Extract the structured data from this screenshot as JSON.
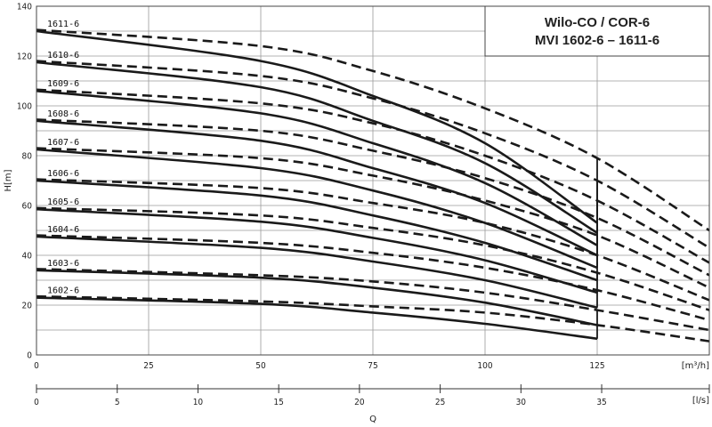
{
  "chart_data": {
    "type": "line",
    "title_line1": "Wilo-CO / COR-6",
    "title_line2": "MVI 1602-6 – 1611-6",
    "ylabel": "H[m]",
    "xlabel": "Q",
    "x_unit": "[m³/h]",
    "x2_unit": "[l/s]",
    "xlim": [
      0,
      150
    ],
    "ylim": [
      0,
      140
    ],
    "x_ticks": [
      0,
      25,
      50,
      75,
      100,
      125
    ],
    "y_ticks": [
      0,
      20,
      40,
      60,
      80,
      100,
      120,
      140
    ],
    "x2_ticks": [
      0,
      5,
      10,
      15,
      20,
      25,
      30,
      35
    ],
    "x2_per_x1": 3.6,
    "solid_end_x": 125,
    "series": [
      {
        "name": "1602-6",
        "solid": [
          [
            0,
            23
          ],
          [
            50,
            20.5
          ],
          [
            75,
            17
          ],
          [
            100,
            12.5
          ],
          [
            125,
            6.5
          ]
        ],
        "dashed": [
          [
            0,
            23.5
          ],
          [
            50,
            21.5
          ],
          [
            75,
            19.5
          ],
          [
            100,
            17
          ],
          [
            125,
            12
          ],
          [
            150,
            5.5
          ]
        ]
      },
      {
        "name": "1603-6",
        "solid": [
          [
            0,
            34
          ],
          [
            50,
            31
          ],
          [
            75,
            27
          ],
          [
            100,
            21
          ],
          [
            125,
            12
          ]
        ],
        "dashed": [
          [
            0,
            34.5
          ],
          [
            50,
            32
          ],
          [
            75,
            29.5
          ],
          [
            100,
            25
          ],
          [
            125,
            18
          ],
          [
            150,
            10
          ]
        ]
      },
      {
        "name": "1604-6",
        "solid": [
          [
            0,
            47.5
          ],
          [
            50,
            43
          ],
          [
            75,
            37.5
          ],
          [
            100,
            30
          ],
          [
            125,
            19
          ]
        ],
        "dashed": [
          [
            0,
            48
          ],
          [
            50,
            45
          ],
          [
            75,
            41
          ],
          [
            100,
            35
          ],
          [
            125,
            26
          ],
          [
            150,
            14
          ]
        ]
      },
      {
        "name": "1605-6",
        "solid": [
          [
            0,
            58.5
          ],
          [
            50,
            53.5
          ],
          [
            75,
            47
          ],
          [
            100,
            38
          ],
          [
            125,
            25
          ]
        ],
        "dashed": [
          [
            0,
            59
          ],
          [
            50,
            56
          ],
          [
            75,
            51
          ],
          [
            100,
            44
          ],
          [
            125,
            33
          ],
          [
            150,
            18
          ]
        ]
      },
      {
        "name": "1606-6",
        "solid": [
          [
            0,
            70
          ],
          [
            50,
            64
          ],
          [
            75,
            56
          ],
          [
            100,
            45
          ],
          [
            125,
            30
          ]
        ],
        "dashed": [
          [
            0,
            70.5
          ],
          [
            50,
            67
          ],
          [
            75,
            61
          ],
          [
            100,
            53
          ],
          [
            125,
            40
          ],
          [
            150,
            22
          ]
        ]
      },
      {
        "name": "1607-6",
        "solid": [
          [
            0,
            82.5
          ],
          [
            50,
            75
          ],
          [
            75,
            66
          ],
          [
            100,
            53
          ],
          [
            125,
            35
          ]
        ],
        "dashed": [
          [
            0,
            83
          ],
          [
            50,
            79
          ],
          [
            75,
            72
          ],
          [
            100,
            62
          ],
          [
            125,
            48
          ],
          [
            150,
            27
          ]
        ]
      },
      {
        "name": "1608-6",
        "solid": [
          [
            0,
            94
          ],
          [
            50,
            86
          ],
          [
            75,
            75
          ],
          [
            100,
            61
          ],
          [
            125,
            40
          ]
        ],
        "dashed": [
          [
            0,
            94.5
          ],
          [
            50,
            90
          ],
          [
            75,
            82
          ],
          [
            100,
            71
          ],
          [
            125,
            55
          ],
          [
            150,
            32
          ]
        ]
      },
      {
        "name": "1609-6",
        "solid": [
          [
            0,
            106
          ],
          [
            50,
            97
          ],
          [
            75,
            85
          ],
          [
            100,
            69
          ],
          [
            125,
            44
          ]
        ],
        "dashed": [
          [
            0,
            106.5
          ],
          [
            50,
            101
          ],
          [
            75,
            93
          ],
          [
            100,
            80
          ],
          [
            125,
            62
          ],
          [
            150,
            37
          ]
        ]
      },
      {
        "name": "1610-6",
        "solid": [
          [
            0,
            117.5
          ],
          [
            50,
            107.5
          ],
          [
            75,
            94
          ],
          [
            100,
            77
          ],
          [
            125,
            49
          ]
        ],
        "dashed": [
          [
            0,
            118
          ],
          [
            50,
            112
          ],
          [
            75,
            103
          ],
          [
            100,
            89
          ],
          [
            125,
            70
          ],
          [
            150,
            43
          ]
        ]
      },
      {
        "name": "1611-6",
        "solid": [
          [
            0,
            130
          ],
          [
            50,
            118
          ],
          [
            75,
            104
          ],
          [
            100,
            85
          ],
          [
            125,
            53
          ]
        ],
        "dashed": [
          [
            0,
            130.5
          ],
          [
            50,
            124
          ],
          [
            75,
            114
          ],
          [
            100,
            99
          ],
          [
            125,
            79
          ],
          [
            150,
            50
          ]
        ]
      }
    ]
  }
}
